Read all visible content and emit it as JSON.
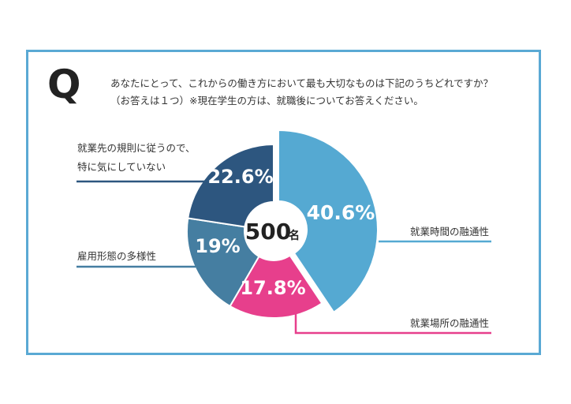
{
  "question": {
    "mark": "Q",
    "line1": "あなたにとって、これからの働き方において最も大切なものは下記のうちどれですか？",
    "line2": "（お答えは１つ）※現在学生の方は、就職後についてお答えください。"
  },
  "center": {
    "count": "500",
    "unit": "名"
  },
  "colors": {
    "frame": "#5aa9d4",
    "slice1": "#55a9d2",
    "slice2": "#e73f8c",
    "slice3": "#457ea1",
    "slice4": "#2d567f"
  },
  "chart_data": {
    "type": "pie",
    "variant": "donut",
    "total_label": "500名",
    "slices": [
      {
        "label": "就業時間の融通性",
        "value": 40.6,
        "display": "40.6%"
      },
      {
        "label": "就業場所の融通性",
        "value": 17.8,
        "display": "17.8%"
      },
      {
        "label": "雇用形態の多様性",
        "value": 19,
        "display": "19%"
      },
      {
        "label": "就業先の規則に従うので、特に気にしていない",
        "label_lines": [
          "就業先の規則に従うので、",
          "特に気にしていない"
        ],
        "value": 22.6,
        "display": "22.6%"
      }
    ]
  }
}
